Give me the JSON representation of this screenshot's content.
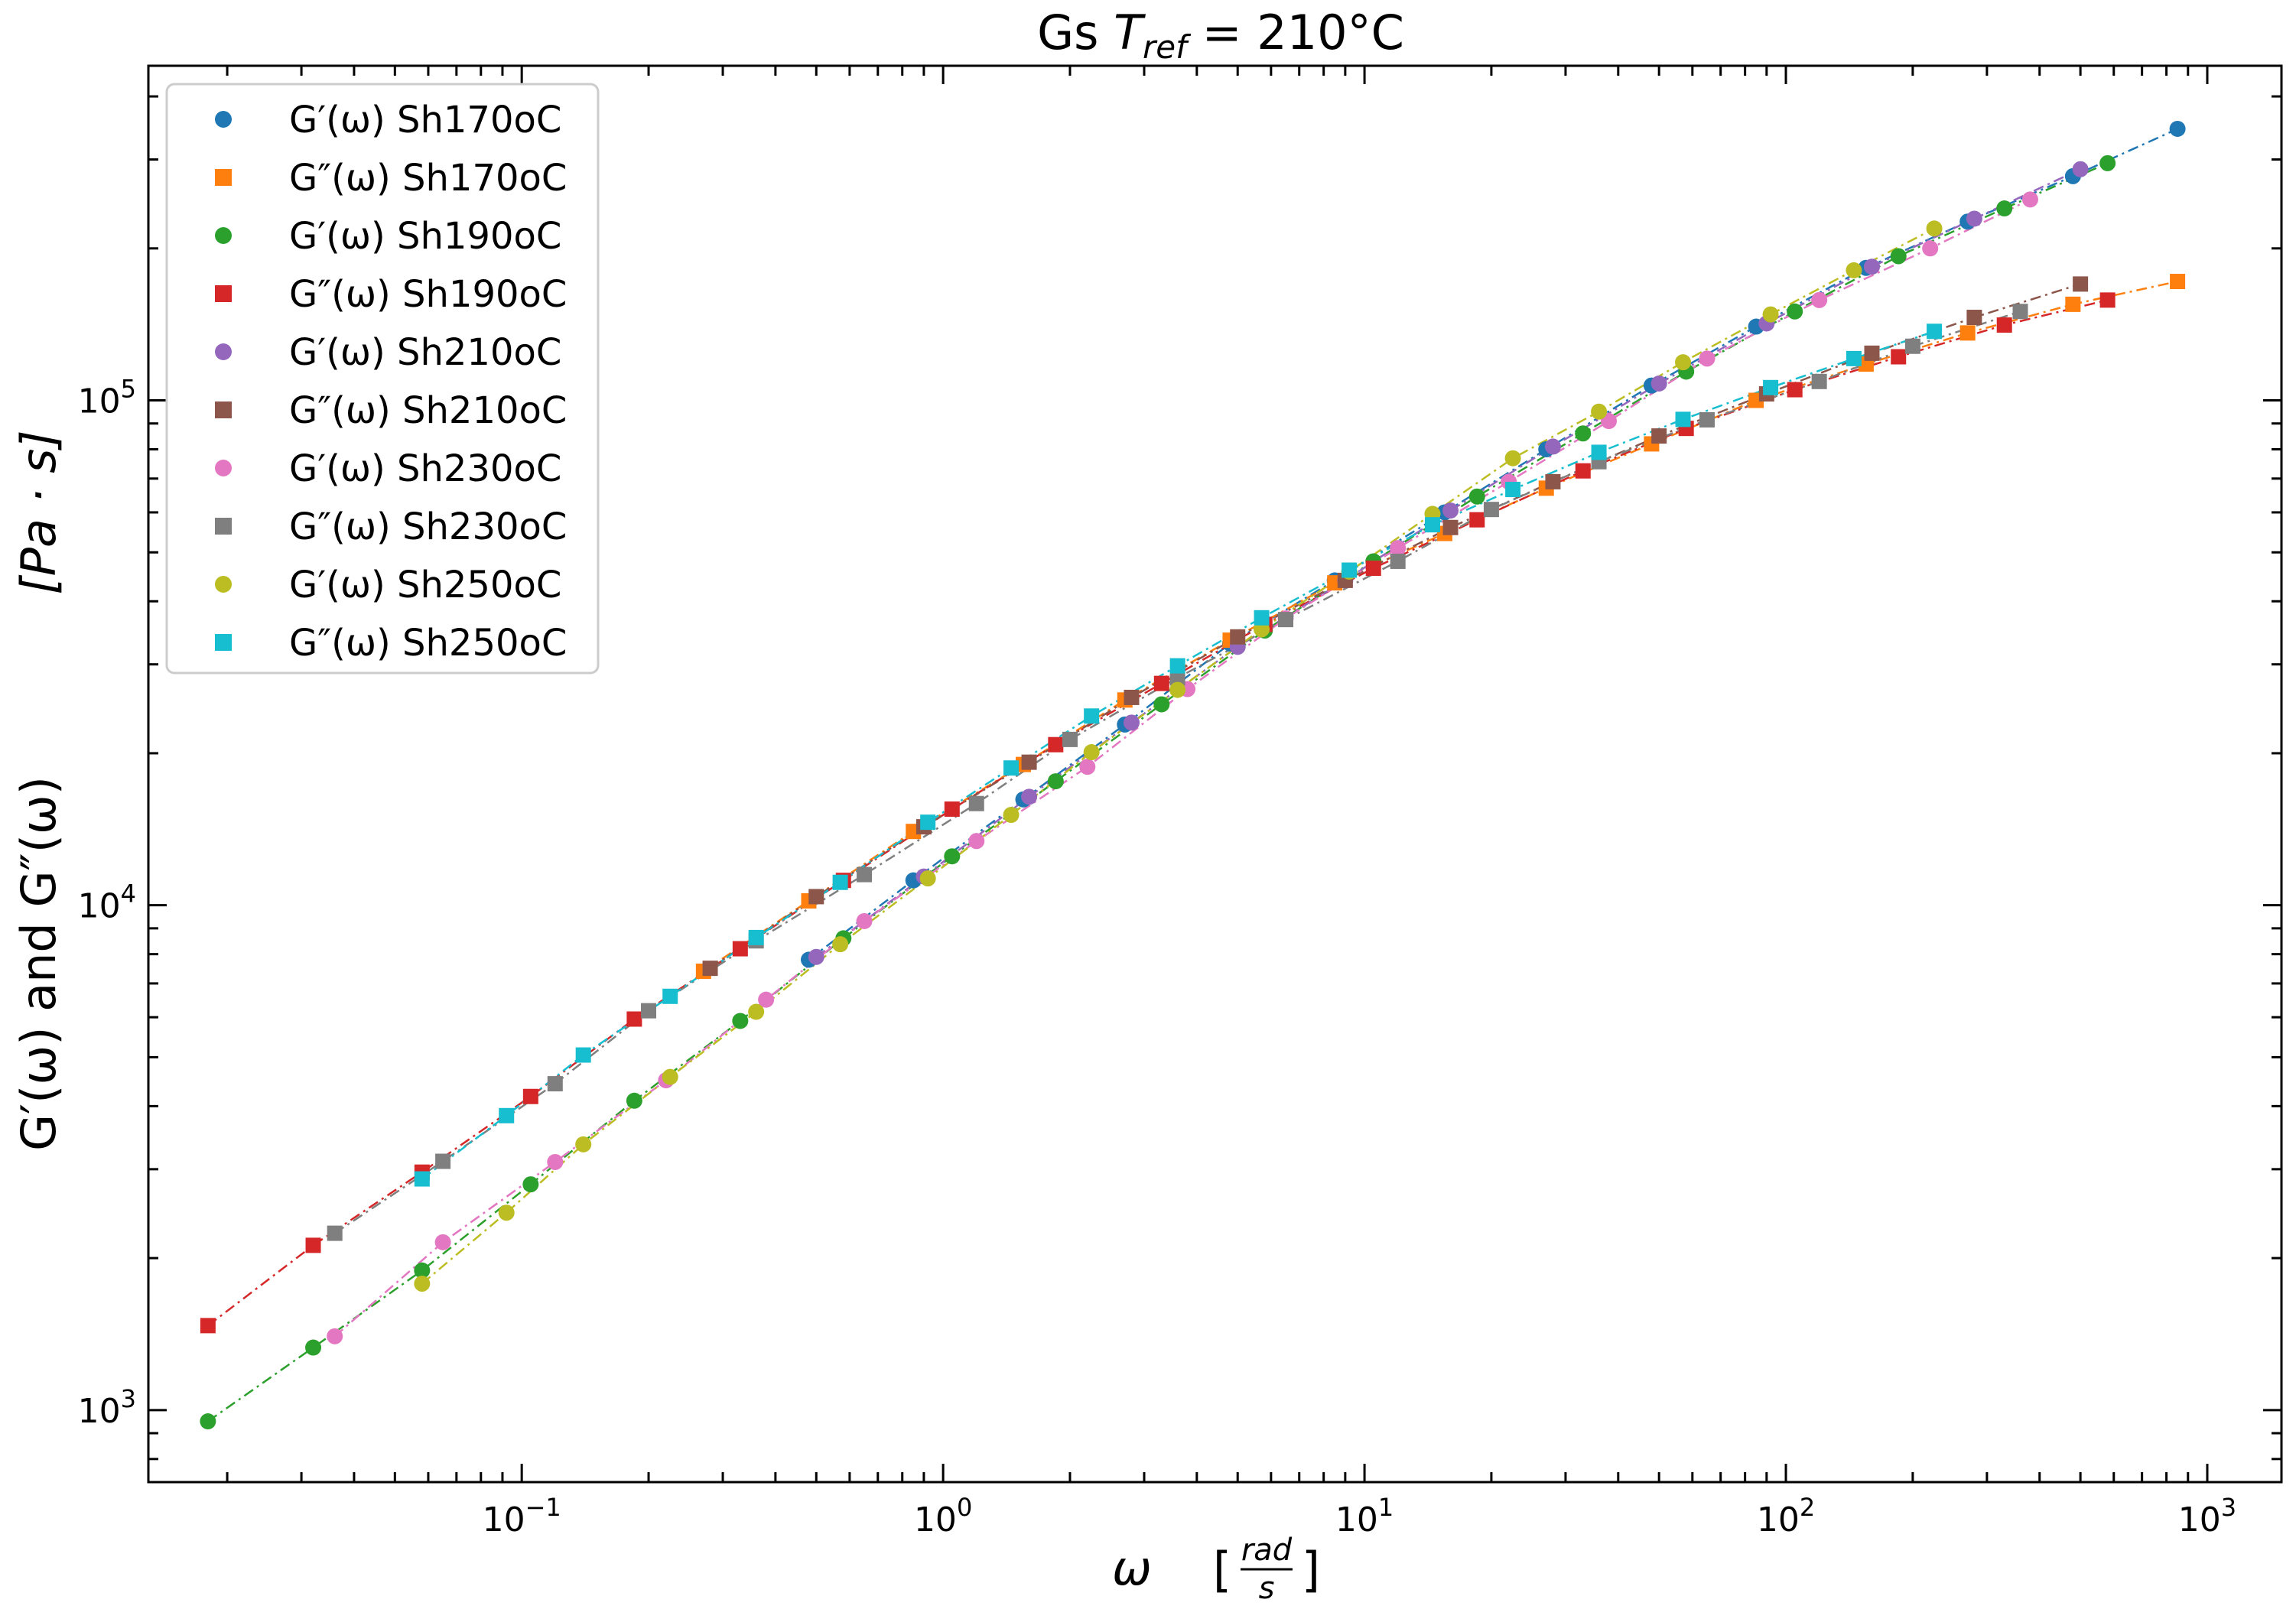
{
  "chart_data": {
    "type": "scatter",
    "title_prefix": "Gs ",
    "title_math": "T",
    "title_sub": "ref",
    "title_suffix": " = 210°C",
    "xlabel_symbol": "ω",
    "xlabel_num": "rad",
    "xlabel_den": "s",
    "ylabel": "G′(ω) and G″(ω)",
    "ylabel_units": "[Pa · s]",
    "xscale": "log",
    "yscale": "log",
    "xlim": [
      0.013,
      1500
    ],
    "ylim": [
      720,
      460000
    ],
    "xtick_base": "10",
    "xticks": [
      {
        "exp": "−1",
        "v": 0.1
      },
      {
        "exp": "0",
        "v": 1
      },
      {
        "exp": "1",
        "v": 10
      },
      {
        "exp": "2",
        "v": 100
      },
      {
        "exp": "3",
        "v": 1000
      }
    ],
    "ytick_base": "10",
    "yticks": [
      {
        "exp": "3",
        "v": 1000
      },
      {
        "exp": "4",
        "v": 10000
      },
      {
        "exp": "5",
        "v": 100000
      }
    ],
    "grid": false,
    "legend_position": "top-left",
    "series": [
      {
        "name": "G′(ω) Sh170oC",
        "marker": "circle",
        "color": "#1f77b4",
        "x": [
          0.48,
          0.85,
          1.55,
          2.7,
          4.8,
          8.5,
          15.5,
          27,
          48,
          85,
          155,
          270,
          480,
          850
        ],
        "y": [
          7800,
          11200,
          16200,
          22800,
          33000,
          44000,
          60000,
          80000,
          107000,
          140000,
          183000,
          226000,
          278000,
          345000
        ]
      },
      {
        "name": "G″(ω) Sh170oC",
        "marker": "square",
        "color": "#ff7f0e",
        "x": [
          0.27,
          0.48,
          0.85,
          1.55,
          2.7,
          4.8,
          8.5,
          15.5,
          27,
          48,
          85,
          155,
          270,
          480,
          850
        ],
        "y": [
          7400,
          10200,
          14000,
          19000,
          25500,
          33500,
          43500,
          54500,
          67000,
          82000,
          100000,
          118000,
          136000,
          155000,
          172000
        ]
      },
      {
        "name": "G′(ω) Sh190oC",
        "marker": "circle",
        "color": "#2ca02c",
        "x": [
          0.018,
          0.032,
          0.058,
          0.105,
          0.185,
          0.33,
          0.58,
          1.05,
          1.85,
          3.3,
          5.8,
          10.5,
          18.5,
          33,
          58,
          105,
          185,
          330,
          580
        ],
        "y": [
          950,
          1330,
          1890,
          2800,
          4100,
          5900,
          8600,
          12500,
          17600,
          25000,
          35000,
          48000,
          64500,
          86000,
          114000,
          150000,
          193000,
          240000,
          295000
        ]
      },
      {
        "name": "G″(ω) Sh190oC",
        "marker": "square",
        "color": "#d62728",
        "x": [
          0.018,
          0.032,
          0.058,
          0.105,
          0.185,
          0.33,
          0.58,
          1.05,
          1.85,
          3.3,
          5.8,
          10.5,
          18.5,
          33,
          58,
          105,
          185,
          330,
          580
        ],
        "y": [
          1470,
          2120,
          2960,
          4180,
          5950,
          8200,
          11200,
          15500,
          20800,
          27500,
          36000,
          46500,
          58000,
          72500,
          88000,
          105000,
          122000,
          141000,
          158000
        ]
      },
      {
        "name": "G′(ω) Sh210oC",
        "marker": "circle",
        "color": "#9467bd",
        "x": [
          0.5,
          0.9,
          1.6,
          2.8,
          5,
          9,
          16,
          28,
          50,
          90,
          160,
          280,
          500
        ],
        "y": [
          7900,
          11400,
          16400,
          23000,
          32500,
          44000,
          60500,
          81000,
          108000,
          142000,
          184000,
          229000,
          287000
        ]
      },
      {
        "name": "G″(ω) Sh210oC",
        "marker": "square",
        "color": "#8c564b",
        "x": [
          0.28,
          0.5,
          0.9,
          1.6,
          2.8,
          5,
          9,
          16,
          28,
          50,
          90,
          160,
          280,
          500
        ],
        "y": [
          7500,
          10400,
          14300,
          19200,
          25800,
          34000,
          44000,
          56000,
          69000,
          85000,
          103000,
          124000,
          146000,
          170000
        ]
      },
      {
        "name": "G′(ω) Sh230oC",
        "marker": "circle",
        "color": "#e377c2",
        "x": [
          0.036,
          0.065,
          0.12,
          0.22,
          0.38,
          0.65,
          1.2,
          2.2,
          3.8,
          6.5,
          12,
          22,
          38,
          65,
          120,
          220,
          380
        ],
        "y": [
          1400,
          2150,
          3100,
          4500,
          6500,
          9300,
          13400,
          18800,
          26800,
          37000,
          51000,
          69000,
          91000,
          121000,
          158000,
          200000,
          250000
        ]
      },
      {
        "name": "G″(ω) Sh230oC",
        "marker": "square",
        "color": "#7f7f7f",
        "x": [
          0.036,
          0.065,
          0.12,
          0.2,
          0.36,
          0.65,
          1.2,
          2.0,
          3.6,
          6.5,
          12,
          20,
          36,
          65,
          120,
          200,
          360
        ],
        "y": [
          2240,
          3110,
          4430,
          6180,
          8500,
          11500,
          15900,
          21300,
          28200,
          36800,
          48000,
          60800,
          75600,
          91500,
          109000,
          128000,
          150000
        ]
      },
      {
        "name": "G′(ω) Sh250oC",
        "marker": "circle",
        "color": "#bcbd22",
        "x": [
          0.058,
          0.092,
          0.14,
          0.225,
          0.36,
          0.57,
          0.92,
          1.45,
          2.25,
          3.6,
          5.7,
          9.2,
          14.5,
          22.5,
          36,
          57,
          92,
          145,
          225
        ],
        "y": [
          1780,
          2460,
          3360,
          4570,
          6150,
          8370,
          11300,
          15100,
          20100,
          26700,
          35200,
          45800,
          59600,
          76800,
          95000,
          119000,
          148000,
          181000,
          219000
        ]
      },
      {
        "name": "G″(ω) Sh250oC",
        "marker": "square",
        "color": "#17becf",
        "x": [
          0.058,
          0.092,
          0.14,
          0.225,
          0.36,
          0.57,
          0.92,
          1.45,
          2.25,
          3.6,
          5.7,
          9.2,
          14.5,
          22.5,
          36,
          57,
          92,
          145,
          225
        ],
        "y": [
          2870,
          3830,
          5050,
          6600,
          8630,
          11100,
          14600,
          18700,
          23700,
          29800,
          37100,
          46100,
          56700,
          66600,
          78900,
          91700,
          106000,
          121000,
          137000
        ]
      }
    ]
  }
}
